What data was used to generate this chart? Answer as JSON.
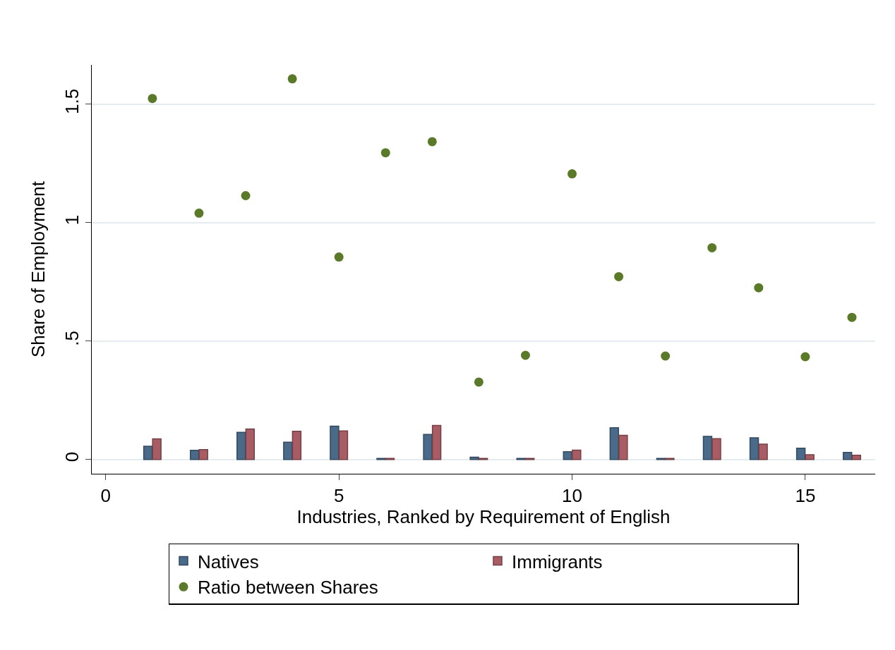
{
  "chart_data": {
    "type": "bar",
    "xlabel": "Industries, Ranked by Requirement of English",
    "ylabel": "Share of Employment",
    "x": [
      1,
      2,
      3,
      4,
      5,
      6,
      7,
      8,
      9,
      10,
      11,
      12,
      13,
      14,
      15,
      16
    ],
    "series": [
      {
        "name": "Natives",
        "color": "#4a6a8a",
        "values": [
          0.056,
          0.039,
          0.115,
          0.073,
          0.141,
          0.005,
          0.106,
          0.01,
          0.005,
          0.033,
          0.134,
          0.005,
          0.098,
          0.092,
          0.048,
          0.03
        ]
      },
      {
        "name": "Immigrants",
        "color": "#a85c63",
        "values": [
          0.087,
          0.042,
          0.129,
          0.119,
          0.121,
          0.005,
          0.144,
          0.005,
          0.005,
          0.04,
          0.102,
          0.005,
          0.088,
          0.065,
          0.02,
          0.018
        ]
      },
      {
        "name": "Ratio between Shares",
        "type": "scatter",
        "marker": "circle",
        "color": "#5a7a2a",
        "values": [
          1.524,
          1.04,
          1.114,
          1.607,
          0.855,
          1.295,
          1.342,
          0.327,
          0.44,
          1.206,
          0.772,
          0.437,
          0.894,
          0.725,
          0.434,
          0.6
        ]
      }
    ],
    "xlim": [
      -0.3,
      16.5
    ],
    "xticks": [
      0,
      5,
      10,
      15
    ],
    "ylim": [
      -0.06,
      1.666
    ],
    "yticks": [
      0,
      {
        "value": 0.5,
        "label": ".5"
      },
      1,
      1.5
    ],
    "grid": "y",
    "legend": "bottom"
  }
}
